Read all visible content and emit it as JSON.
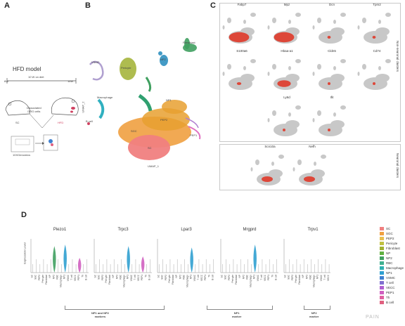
{
  "panels": {
    "a": "A",
    "b": "B",
    "c": "C",
    "d": "D"
  },
  "panelA": {
    "title": "HFD model",
    "week_start": "6W",
    "timeline_label": "10 W on diet",
    "week_end": "16W",
    "dissociated": "Dissociated\nDRG cells",
    "sc_label": "SC",
    "hfd_label": "HFD",
    "tenx_label": "10XGenomics"
  },
  "panelB": {
    "ylabel": "UMAP_2",
    "xlabel": "UMAP_1",
    "clusters": [
      "Pericyte",
      "VSMC",
      "Fibroblast",
      "NP2",
      "Macrophage",
      "SGC",
      "SC",
      "PEP2",
      "PEP1",
      "NP1",
      "B cell"
    ],
    "colors": {
      "SC": "#f08080",
      "SGC": "#f0a040",
      "PEP2": "#e8a030",
      "Pericyte": "#a0b030",
      "Fibroblast": "#40a060",
      "NP2": "#40a0b0",
      "Macrophage": "#30b0c0",
      "VSMC": "#b0a0d0",
      "NP1": "#30a070",
      "PEP1": "#e070c0",
      "Bcell": "#d04060"
    }
  },
  "panelC": {
    "genes_non_neuronal": [
      "Fabp7",
      "Mpz",
      "Dcn",
      "Tpm2",
      "S100a6",
      "Hbaa-a1",
      "Cldn5",
      "Cd74",
      "Ly6d",
      "Ifit"
    ],
    "genes_neuronal": [
      "Scn10a",
      "Nefh"
    ],
    "label_non_neuronal": "Non-neuronal clusters",
    "label_neuronal": "Neuronal clusters"
  },
  "panelD": {
    "ylabel": "Expression Level",
    "genes": [
      "Piezo1",
      "Trpc3",
      "Lpar3",
      "Mrgprd",
      "Trpv1"
    ],
    "categories": [
      "SC",
      "SGC",
      "PEP2",
      "Pericyte",
      "Fibroblast",
      "NP",
      "NP2",
      "RBC",
      "Macrophage",
      "NP1",
      "VSMC",
      "T cell",
      "VECC",
      "PEP1",
      "Th",
      "B cell"
    ],
    "group_labels": [
      "NP1 and NP2\nmarkers",
      "NP1\nmarker",
      "NP2\nmarker"
    ],
    "legend": [
      {
        "name": "SC",
        "color": "#f08080"
      },
      {
        "name": "SGC",
        "color": "#f0a040"
      },
      {
        "name": "PEP2",
        "color": "#e8c050"
      },
      {
        "name": "Pericyte",
        "color": "#c0c040"
      },
      {
        "name": "Fibroblast",
        "color": "#a0b030"
      },
      {
        "name": "NP",
        "color": "#60b040"
      },
      {
        "name": "NP2",
        "color": "#40a060"
      },
      {
        "name": "RBC",
        "color": "#40b090"
      },
      {
        "name": "Macrophage",
        "color": "#30b0b0"
      },
      {
        "name": "NP1",
        "color": "#30a0d0"
      },
      {
        "name": "VSMC",
        "color": "#4080d0"
      },
      {
        "name": "T cell",
        "color": "#8070d0"
      },
      {
        "name": "VECC",
        "color": "#b060d0"
      },
      {
        "name": "PEP1",
        "color": "#d060c0"
      },
      {
        "name": "Th",
        "color": "#e060a0"
      },
      {
        "name": "B cell",
        "color": "#e06080"
      }
    ],
    "watermark": "PAIN"
  }
}
